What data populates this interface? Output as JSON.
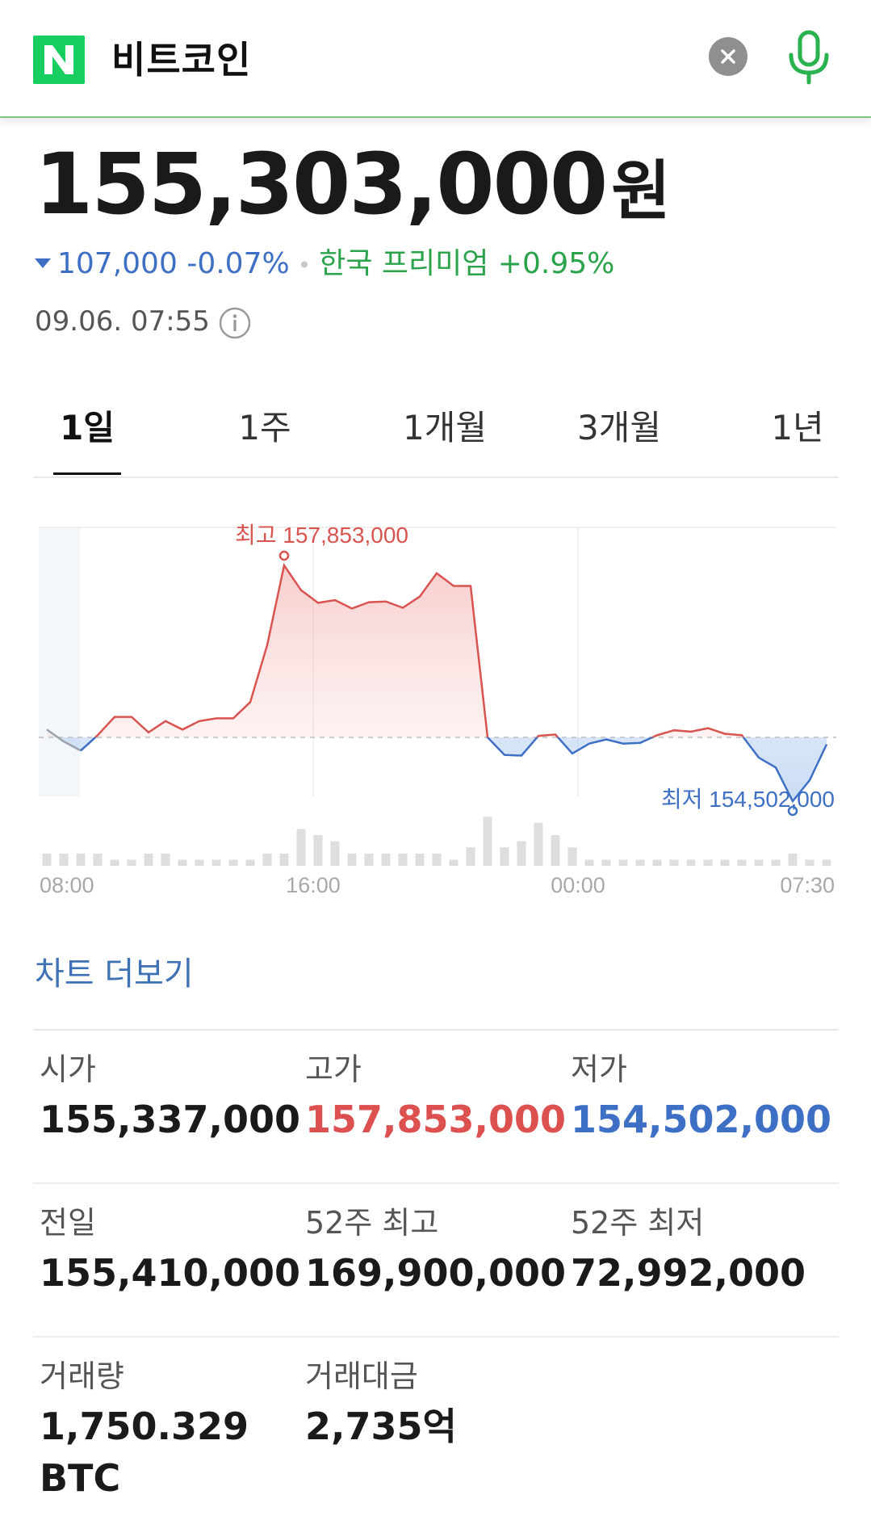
{
  "search": {
    "query": "비트코인",
    "logo_letter": "N",
    "brand_color": "#19ce60"
  },
  "quote": {
    "price": "155,303,000",
    "unit": "원",
    "change_amount": "107,000",
    "change_percent": "-0.07%",
    "premium_text": "한국 프리미엄 +0.95%",
    "timestamp": "09.06. 07:55",
    "down_color": "#3d6fc5",
    "premium_color": "#2aa34a"
  },
  "tabs": [
    {
      "label": "1일",
      "active": true
    },
    {
      "label": "1주",
      "active": false
    },
    {
      "label": "1개월",
      "active": false
    },
    {
      "label": "3개월",
      "active": false
    },
    {
      "label": "1년",
      "active": false
    }
  ],
  "chart_data": {
    "type": "area",
    "x_ticks": [
      "08:00",
      "16:00",
      "00:00",
      "07:30"
    ],
    "high_label": "최고 157,853,000",
    "low_label": "최저 154,502,000",
    "high": 157853000,
    "low": 154502000,
    "previous_close": 155410000,
    "up_color": "#d9534f",
    "down_color": "#3d6fc5",
    "price_series": [
      155520000,
      155350000,
      155220000,
      155440000,
      155700000,
      155700000,
      155480000,
      155640000,
      155520000,
      155640000,
      155680000,
      155680000,
      155910000,
      156720000,
      157853000,
      157500000,
      157320000,
      157360000,
      157240000,
      157330000,
      157340000,
      157250000,
      157410000,
      157740000,
      157560000,
      157560000,
      155410000,
      155160000,
      155150000,
      155430000,
      155450000,
      155180000,
      155320000,
      155380000,
      155320000,
      155330000,
      155440000,
      155510000,
      155490000,
      155540000,
      155460000,
      155440000,
      155120000,
      154980000,
      154502000,
      154800000,
      155310000
    ],
    "volume_series": [
      2,
      2,
      2,
      2,
      1,
      1,
      2,
      2,
      1,
      1,
      1,
      1,
      1,
      2,
      2,
      6,
      5,
      4,
      2,
      2,
      2,
      2,
      2,
      2,
      1,
      3,
      8,
      3,
      4,
      7,
      5,
      3,
      1,
      1,
      1,
      1,
      1,
      1,
      1,
      1,
      1,
      1,
      1,
      1,
      2,
      1,
      1
    ]
  },
  "more_link": "차트 더보기",
  "stats": [
    [
      {
        "label": "시가",
        "value": "155,337,000",
        "tone": "normal"
      },
      {
        "label": "고가",
        "value": "157,853,000",
        "tone": "red"
      },
      {
        "label": "저가",
        "value": "154,502,000",
        "tone": "blue"
      }
    ],
    [
      {
        "label": "전일",
        "value": "155,410,000",
        "tone": "normal"
      },
      {
        "label": "52주 최고",
        "value": "169,900,000",
        "tone": "normal"
      },
      {
        "label": "52주 최저",
        "value": "72,992,000",
        "tone": "normal"
      }
    ],
    [
      {
        "label": "거래량",
        "value": "1,750.329\nBTC",
        "tone": "normal"
      },
      {
        "label": "거래대금",
        "value": "2,735억",
        "tone": "normal"
      }
    ]
  ]
}
